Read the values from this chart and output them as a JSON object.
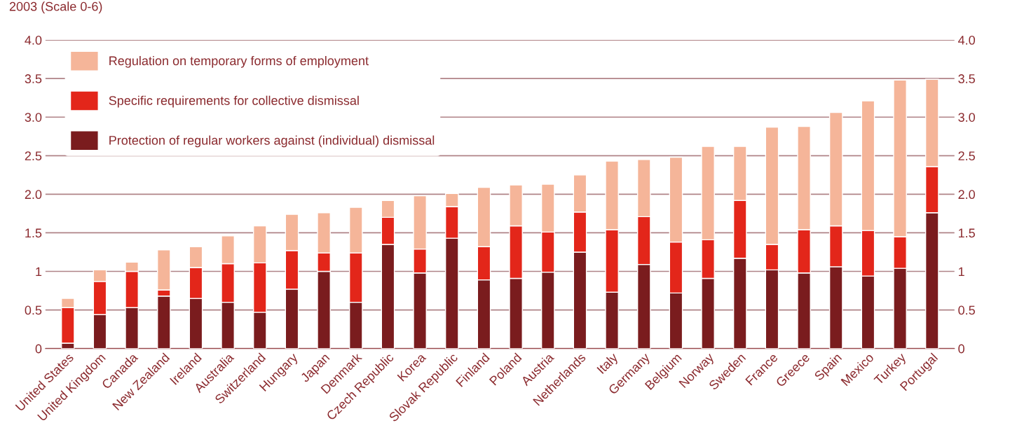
{
  "chart_data": {
    "type": "bar",
    "title": "2003 (Scale 0-6)",
    "stacked": true,
    "grid": "y",
    "legend": "top left",
    "categories": [
      "United States",
      "United Kingdom",
      "Canada",
      "New Zealand",
      "Ireland",
      "Australia",
      "Switzerland",
      "Hungary",
      "Japan",
      "Denmark",
      "Czech Republic",
      "Korea",
      "Slovak Republic",
      "Finland",
      "Poland",
      "Austria",
      "Netherlands",
      "Italy",
      "Germany",
      "Belgium",
      "Norway",
      "Sweden",
      "France",
      "Greece",
      "Spain",
      "Mexico",
      "Turkey",
      "Portugal"
    ],
    "series": [
      {
        "name": "Protection of regular workers against (individual) dismissal",
        "color": "#7a1c1e",
        "values": [
          0.07,
          0.44,
          0.53,
          0.68,
          0.65,
          0.6,
          0.47,
          0.77,
          1.0,
          0.6,
          1.35,
          0.98,
          1.43,
          0.89,
          0.91,
          0.99,
          1.25,
          0.73,
          1.09,
          0.72,
          0.91,
          1.17,
          1.02,
          0.98,
          1.06,
          0.94,
          1.04,
          1.76
        ]
      },
      {
        "name": "Specific requirements for collective dismissal",
        "color": "#e3261a",
        "values": [
          0.46,
          0.43,
          0.47,
          0.08,
          0.4,
          0.5,
          0.64,
          0.5,
          0.24,
          0.64,
          0.35,
          0.31,
          0.41,
          0.43,
          0.68,
          0.52,
          0.52,
          0.81,
          0.62,
          0.66,
          0.5,
          0.75,
          0.33,
          0.56,
          0.53,
          0.59,
          0.41,
          0.6
        ]
      },
      {
        "name": "Regulation on temporary forms of employment",
        "color": "#f5b599",
        "values": [
          0.12,
          0.15,
          0.12,
          0.52,
          0.27,
          0.36,
          0.48,
          0.47,
          0.52,
          0.59,
          0.22,
          0.69,
          0.17,
          0.77,
          0.53,
          0.62,
          0.48,
          0.89,
          0.74,
          1.1,
          1.21,
          0.7,
          1.52,
          1.34,
          1.47,
          1.68,
          2.03,
          1.13
        ]
      }
    ],
    "ylim": [
      0,
      4.0
    ],
    "yticks": [
      0,
      0.5,
      1,
      1.5,
      {
        "value": 2,
        "label": "2.0"
      },
      2.5,
      {
        "value": 3,
        "label": "3.0"
      },
      3.5,
      {
        "value": 4,
        "label": "4.0"
      }
    ],
    "y2lim": [
      0,
      4.0
    ],
    "y2ticks": [
      0,
      0.5,
      1,
      1.5,
      {
        "value": 2,
        "label": "2.0"
      },
      2.5,
      {
        "value": 3,
        "label": "3.0"
      },
      3.5,
      {
        "value": 4,
        "label": "4.0"
      }
    ]
  }
}
